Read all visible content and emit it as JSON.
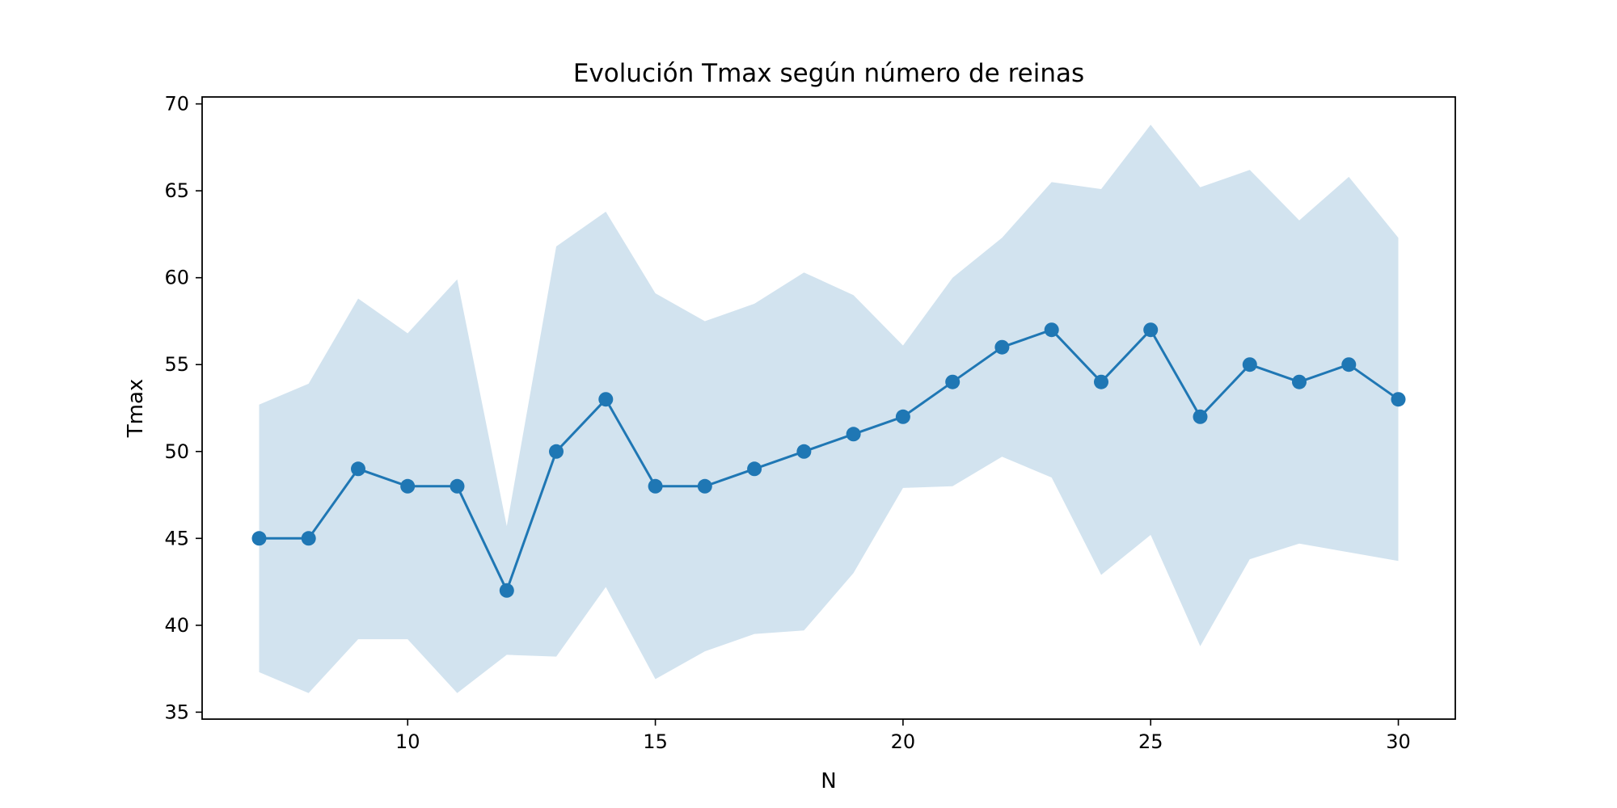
{
  "chart_data": {
    "type": "line",
    "title": "Evolución Tmax según número de reinas",
    "xlabel": "N",
    "ylabel": "Tmax",
    "xlim": [
      5.85,
      31.15
    ],
    "ylim": [
      34.6,
      70.4
    ],
    "xticks": [
      10,
      15,
      20,
      25,
      30
    ],
    "yticks": [
      35,
      40,
      45,
      50,
      55,
      60,
      65,
      70
    ],
    "grid": false,
    "legend": "none",
    "x": [
      7,
      8,
      9,
      10,
      11,
      12,
      13,
      14,
      15,
      16,
      17,
      18,
      19,
      20,
      21,
      22,
      23,
      24,
      25,
      26,
      27,
      28,
      29,
      30
    ],
    "series": [
      {
        "values": [
          45,
          45,
          49,
          48,
          48,
          42,
          50,
          53,
          48,
          48,
          49,
          50,
          51,
          52,
          54,
          56,
          57,
          54,
          57,
          52,
          55,
          54,
          55,
          53
        ],
        "band_lower": [
          37.3,
          36.1,
          39.2,
          39.2,
          36.1,
          38.3,
          38.2,
          42.2,
          36.9,
          38.5,
          39.5,
          39.7,
          43.0,
          47.9,
          48.0,
          49.7,
          48.5,
          42.9,
          45.2,
          38.8,
          43.8,
          44.7,
          44.2,
          43.7
        ],
        "band_upper": [
          52.7,
          53.9,
          58.8,
          56.8,
          59.9,
          45.7,
          61.8,
          63.8,
          59.1,
          57.5,
          58.5,
          60.3,
          59.0,
          56.1,
          60.0,
          62.3,
          65.5,
          65.1,
          68.8,
          65.2,
          66.2,
          63.3,
          65.8,
          62.3
        ]
      }
    ],
    "colors": {
      "line": "#1f77b4",
      "band": "#d2e3ef"
    }
  }
}
